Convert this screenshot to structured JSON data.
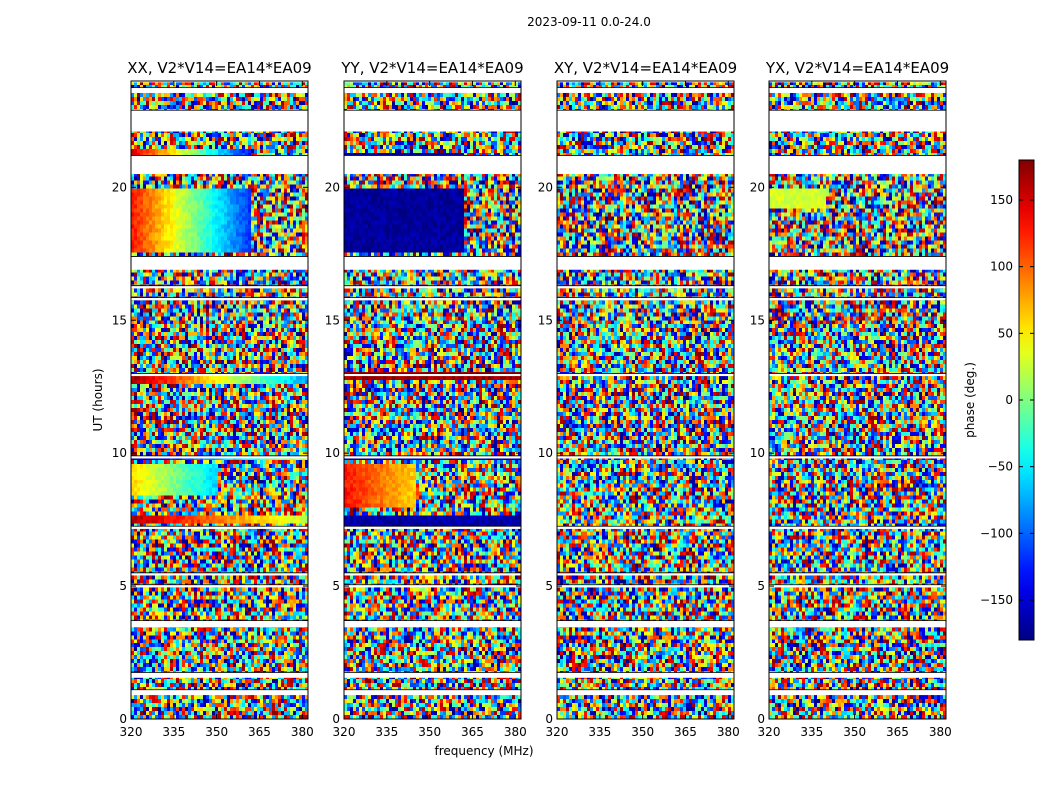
{
  "chart_data": {
    "type": "heatmap",
    "suptitle": "2023-09-11 0.0-24.0",
    "xlabel": "frequency (MHz)",
    "ylabel": "UT (hours)",
    "colorbar_label": "phase (deg.)",
    "colorbar_ticks": [
      150,
      100,
      50,
      0,
      -50,
      -100,
      -150
    ],
    "colorbar_tick_labels": [
      "150",
      "100",
      "50",
      "0",
      "−50",
      "−100",
      "−150"
    ],
    "color_range": [
      -180,
      180
    ],
    "colormap": "jet",
    "xlim": [
      320,
      382
    ],
    "ylim": [
      0,
      24
    ],
    "x_ticks": [
      320,
      335,
      350,
      365,
      380
    ],
    "y_ticks": [
      0,
      5,
      10,
      15,
      20
    ],
    "flagged_bands_hours": [
      [
        0.9,
        1.1
      ],
      [
        1.55,
        1.75
      ],
      [
        3.45,
        3.7
      ],
      [
        4.95,
        5.05
      ],
      [
        5.4,
        5.5
      ],
      [
        7.15,
        7.25
      ],
      [
        9.8,
        9.9
      ],
      [
        12.9,
        13.0
      ],
      [
        15.75,
        15.85
      ],
      [
        16.2,
        16.3
      ],
      [
        16.9,
        17.4
      ],
      [
        20.5,
        21.2
      ],
      [
        22.1,
        22.9
      ],
      [
        23.55,
        23.75
      ],
      [
        23.95,
        24.0
      ]
    ],
    "panels": [
      {
        "title": "XX, V2*V14=EA14*EA09",
        "coherent_bands": [
          {
            "t0": 7.3,
            "t1": 7.7,
            "phase_start": 165,
            "phase_end": 20,
            "clean_until_mhz": 382
          },
          {
            "t0": 8.4,
            "t1": 9.6,
            "phase_start": 60,
            "phase_end": -60,
            "clean_until_mhz": 350
          },
          {
            "t0": 9.7,
            "t1": 9.85,
            "phase_start": -170,
            "phase_end": 30,
            "clean_until_mhz": 382
          },
          {
            "t0": 12.6,
            "t1": 12.95,
            "phase_start": 170,
            "phase_end": -80,
            "clean_until_mhz": 382
          },
          {
            "t0": 17.5,
            "t1": 20.0,
            "phase_start": 130,
            "phase_end": -120,
            "clean_until_mhz": 362
          },
          {
            "t0": 20.9,
            "t1": 21.4,
            "phase_start": 150,
            "phase_end": -130,
            "clean_until_mhz": 362
          },
          {
            "t0": 22.4,
            "t1": 22.7,
            "phase_start": 70,
            "phase_end": -60,
            "clean_until_mhz": 362
          }
        ]
      },
      {
        "title": "YY, V2*V14=EA14*EA09",
        "coherent_bands": [
          {
            "t0": 7.2,
            "t1": 7.7,
            "phase_start": -165,
            "phase_end": -165,
            "clean_until_mhz": 382
          },
          {
            "t0": 8.0,
            "t1": 9.6,
            "phase_start": 130,
            "phase_end": 60,
            "clean_until_mhz": 345
          },
          {
            "t0": 9.7,
            "t1": 9.9,
            "phase_start": -170,
            "phase_end": -170,
            "clean_until_mhz": 382
          },
          {
            "t0": 12.7,
            "t1": 13.0,
            "phase_start": 170,
            "phase_end": 170,
            "clean_until_mhz": 382
          },
          {
            "t0": 17.6,
            "t1": 19.9,
            "phase_start": -170,
            "phase_end": -170,
            "clean_until_mhz": 362
          },
          {
            "t0": 20.5,
            "t1": 21.3,
            "phase_start": -170,
            "phase_end": -170,
            "clean_until_mhz": 362
          },
          {
            "t0": 22.3,
            "t1": 22.6,
            "phase_start": -120,
            "phase_end": -120,
            "clean_until_mhz": 362
          }
        ]
      },
      {
        "title": "XY, V2*V14=EA14*EA09",
        "coherent_bands": []
      },
      {
        "title": "YX, V2*V14=EA14*EA09",
        "coherent_bands": [
          {
            "t0": 19.2,
            "t1": 19.9,
            "phase_start": 30,
            "phase_end": 30,
            "clean_until_mhz": 340
          }
        ]
      }
    ]
  }
}
